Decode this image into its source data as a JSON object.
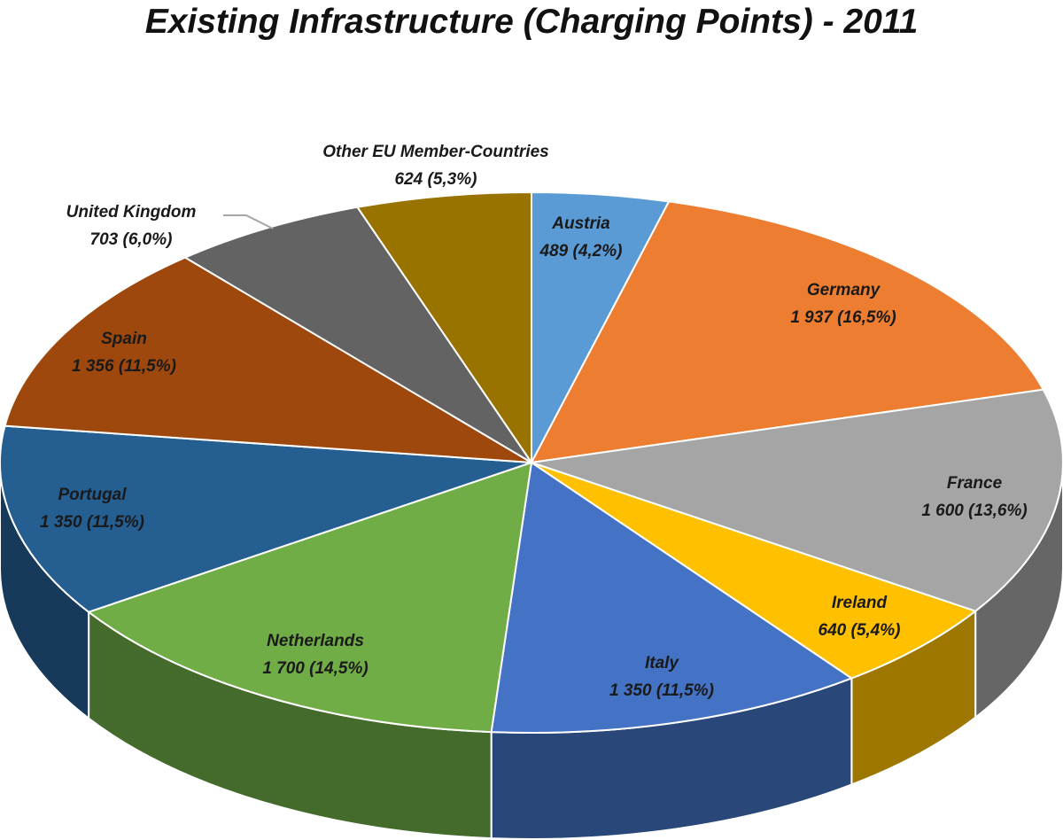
{
  "chart_data": {
    "type": "pie",
    "style": "3d",
    "title": "Existing Infrastructure (Charging Points) - 2011",
    "legend": "none",
    "slices": [
      {
        "name": "Austria",
        "value": 489,
        "label_value": "489 (4,2%)",
        "color": "#5B9BD5"
      },
      {
        "name": "Germany",
        "value": 1937,
        "label_value": "1 937 (16,5%)",
        "color": "#ED7D31"
      },
      {
        "name": "France",
        "value": 1600,
        "label_value": "1 600 (13,6%)",
        "color": "#A5A5A5"
      },
      {
        "name": "Ireland",
        "value": 640,
        "label_value": "640 (5,4%)",
        "color": "#FFC000"
      },
      {
        "name": "Italy",
        "value": 1350,
        "label_value": "1 350 (11,5%)",
        "color": "#4472C4"
      },
      {
        "name": "Netherlands",
        "value": 1700,
        "label_value": "1 700 (14,5%)",
        "color": "#70AD47"
      },
      {
        "name": "Portugal",
        "value": 1350,
        "label_value": "1 350 (11,5%)",
        "color": "#255E91"
      },
      {
        "name": "Spain",
        "value": 1356,
        "label_value": "1 356 (11,5%)",
        "color": "#9E480E"
      },
      {
        "name": "United Kingdom",
        "value": 703,
        "label_value": "703 (6,0%)",
        "color": "#636363"
      },
      {
        "name": "Other EU Member-Countries",
        "value": 624,
        "label_value": "624 (5,3%)",
        "color": "#997300"
      }
    ]
  }
}
